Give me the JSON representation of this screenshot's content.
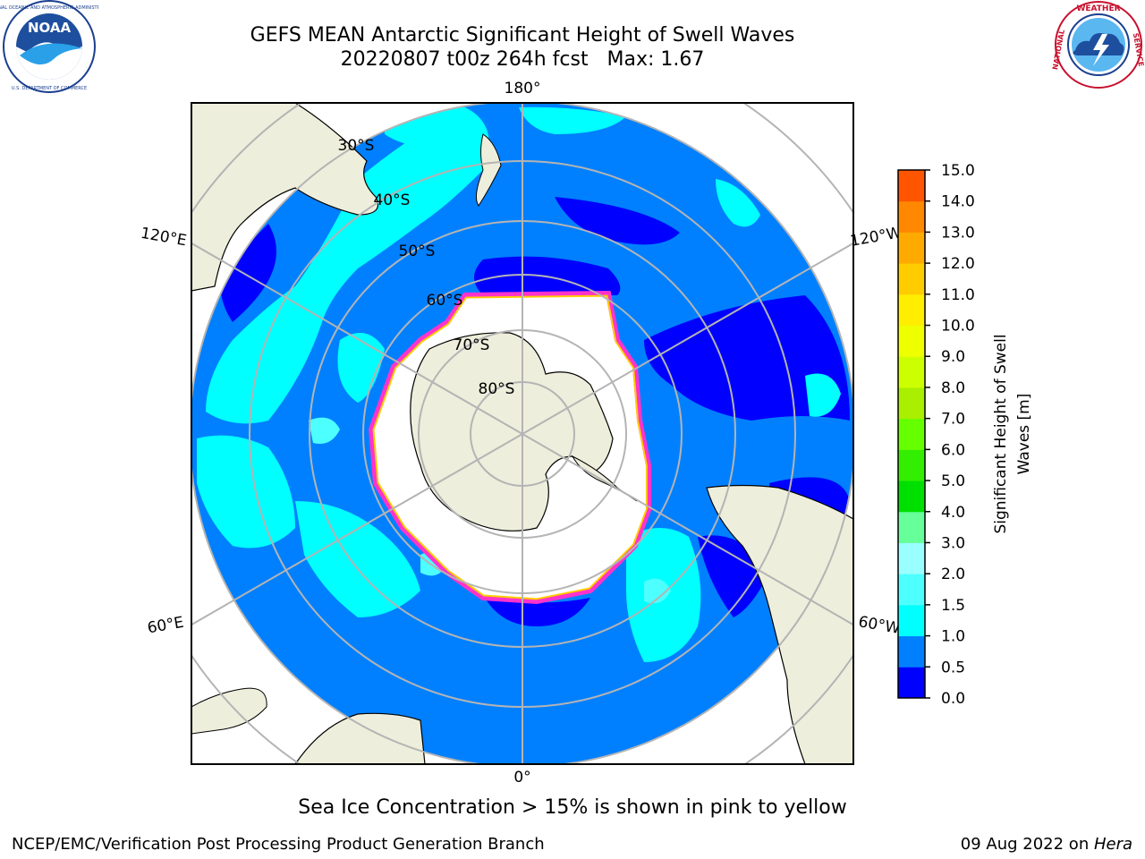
{
  "header": {
    "title_line1": "GEFS MEAN Antarctic Significant Height of Swell Waves",
    "title_line2": "20220807 t00z 264h fcst   Max: 1.67"
  },
  "logos": {
    "left": {
      "name": "noaa-logo",
      "text": "NOAA",
      "ring_text": "NATIONAL OCEANIC AND ATMOSPHERIC ADMINISTRATION · U.S. DEPARTMENT OF COMMERCE"
    },
    "right": {
      "name": "nws-logo",
      "ring_text": "NATIONAL WEATHER SERVICE"
    }
  },
  "map": {
    "projection": "south-polar-stereographic",
    "longitude_labels": {
      "top": "180°",
      "bottom": "0°",
      "upper_left": "120°E",
      "lower_left": "60°E",
      "upper_right": "120°W",
      "lower_right": "60°W"
    },
    "latitude_labels": [
      "30°S",
      "40°S",
      "50°S",
      "60°S",
      "70°S",
      "80°S"
    ],
    "colors": {
      "land": "#eeeedc",
      "ocean_0_0p5": "#0000ff",
      "ocean_0p5_1": "#0080ff",
      "ocean_1_1p5": "#00ffff",
      "ocean_1p5_2": "#4dffff",
      "ice_edge_pink": "#ff33cc",
      "ice_edge_yellow": "#ffcc00",
      "grid": "#b4b4b4"
    }
  },
  "colorbar": {
    "label_line1": "Significant Height of Swell",
    "label_line2": "Waves [m]",
    "ticks": [
      "0.0",
      "0.5",
      "1.0",
      "1.5",
      "2.0",
      "3.0",
      "4.0",
      "5.0",
      "6.0",
      "7.0",
      "8.0",
      "9.0",
      "10.0",
      "11.0",
      "12.0",
      "13.0",
      "14.0",
      "15.0"
    ],
    "bin_colors": [
      "#0000ff",
      "#0080ff",
      "#00ffff",
      "#4dffff",
      "#99ffff",
      "#66ff99",
      "#00e000",
      "#33ee00",
      "#66ff00",
      "#aaee00",
      "#ccff00",
      "#eeff00",
      "#ffee00",
      "#ffcc00",
      "#ffaa00",
      "#ff8800",
      "#ff5500",
      "#ff2200",
      "#ff0000"
    ]
  },
  "annotation": "Sea Ice Concentration > 15% is shown in pink to yellow",
  "footer": {
    "left": "NCEP/EMC/Verification Post Processing Product Generation Branch",
    "right_prefix": "09 Aug 2022 on ",
    "right_host": "Hera"
  }
}
